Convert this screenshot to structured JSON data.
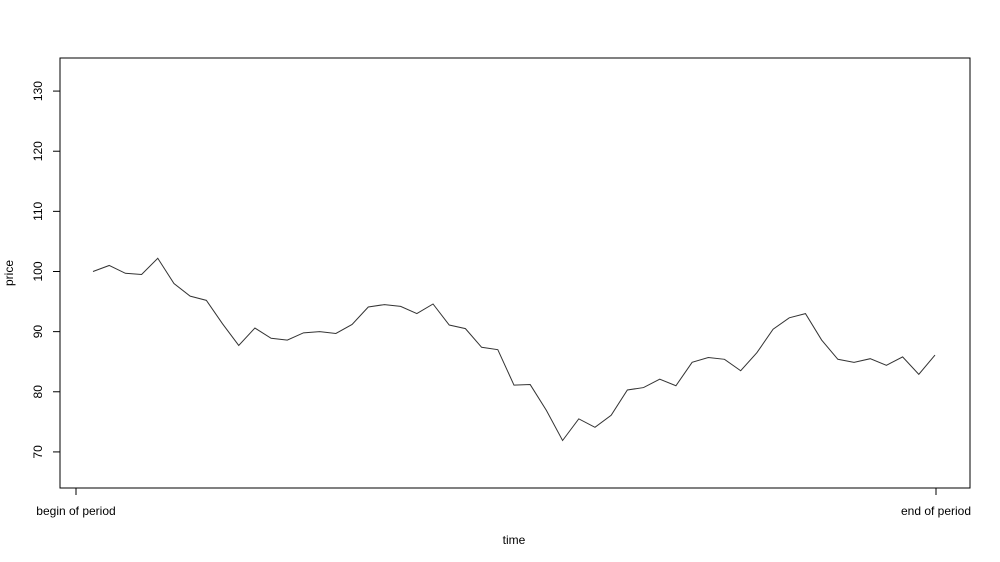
{
  "chart_data": {
    "type": "line",
    "title": "",
    "xlabel": "time",
    "ylabel": "price",
    "x_tick_labels": [
      "begin of period",
      "end of period"
    ],
    "y_ticks": [
      70,
      80,
      90,
      100,
      110,
      120,
      130
    ],
    "ylim": [
      64,
      135.5
    ],
    "grid": false,
    "legend": "none",
    "line_color": "#333333",
    "series": [
      {
        "values": [
          100.0,
          101.0,
          99.7,
          99.5,
          102.2,
          98.0,
          95.9,
          95.2,
          91.3,
          87.7,
          90.6,
          88.9,
          88.6,
          89.8,
          90.0,
          89.7,
          91.2,
          94.1,
          94.5,
          94.2,
          93.0,
          94.6,
          91.1,
          90.5,
          87.4,
          87.0,
          81.1,
          81.2,
          76.9,
          71.9,
          75.5,
          74.1,
          76.1,
          80.3,
          80.7,
          82.1,
          81.0,
          84.9,
          85.7,
          85.4,
          83.5,
          86.5,
          90.4,
          92.3,
          93.0,
          88.6,
          85.4,
          84.9,
          85.5,
          84.4,
          85.8,
          82.9,
          86.1
        ]
      }
    ]
  }
}
